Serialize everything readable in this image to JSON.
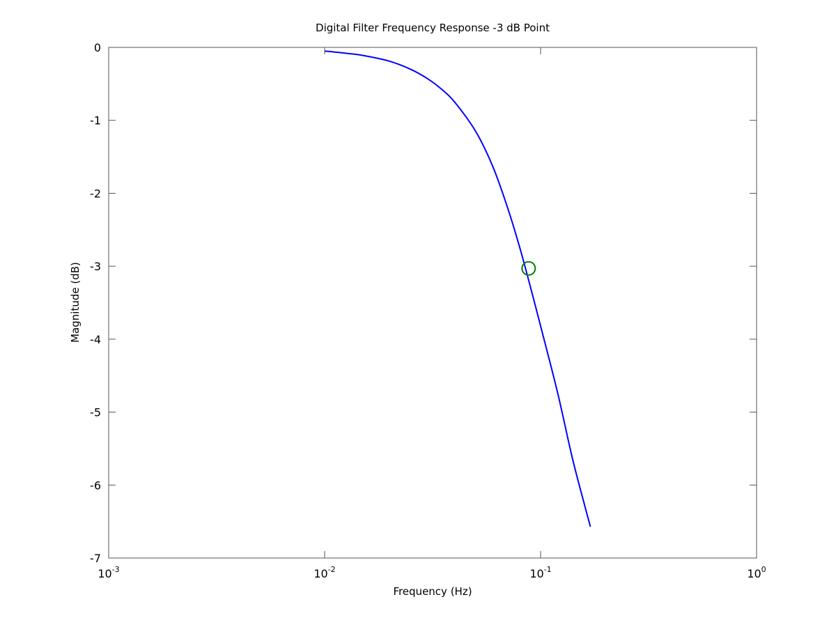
{
  "chart_data": {
    "type": "line",
    "title": "Digital Filter Frequency Response -3 dB Point",
    "xlabel": "Frequency (Hz)",
    "ylabel": "Magnitude (dB)",
    "xscale": "log",
    "xlim": [
      0.001,
      1
    ],
    "ylim": [
      -7,
      0
    ],
    "grid": false,
    "x_ticks": [
      {
        "value": 0.001,
        "base": "10",
        "exp": "-3"
      },
      {
        "value": 0.01,
        "base": "10",
        "exp": "-2"
      },
      {
        "value": 0.1,
        "base": "10",
        "exp": "-1"
      },
      {
        "value": 1,
        "base": "10",
        "exp": "0"
      }
    ],
    "y_ticks": [
      {
        "value": 0,
        "label": "0"
      },
      {
        "value": -1,
        "label": "-1"
      },
      {
        "value": -2,
        "label": "-2"
      },
      {
        "value": -3,
        "label": "-3"
      },
      {
        "value": -4,
        "label": "-4"
      },
      {
        "value": -5,
        "label": "-5"
      },
      {
        "value": -6,
        "label": "-6"
      },
      {
        "value": -7,
        "label": "-7"
      }
    ],
    "series": [
      {
        "color": "#0000ff",
        "x": [
          0.01,
          0.0125,
          0.015,
          0.02,
          0.025,
          0.03,
          0.035,
          0.04,
          0.05,
          0.06,
          0.07,
          0.08,
          0.09,
          0.1,
          0.12,
          0.14,
          0.16,
          0.17
        ],
        "y": [
          -0.05,
          -0.08,
          -0.11,
          -0.19,
          -0.3,
          -0.43,
          -0.58,
          -0.75,
          -1.15,
          -1.63,
          -2.18,
          -2.74,
          -3.3,
          -3.82,
          -4.74,
          -5.62,
          -6.28,
          -6.57
        ]
      },
      {
        "color": "#008000",
        "marker": "circle",
        "x": [
          0.088
        ],
        "y": [
          -3.03
        ]
      }
    ]
  }
}
